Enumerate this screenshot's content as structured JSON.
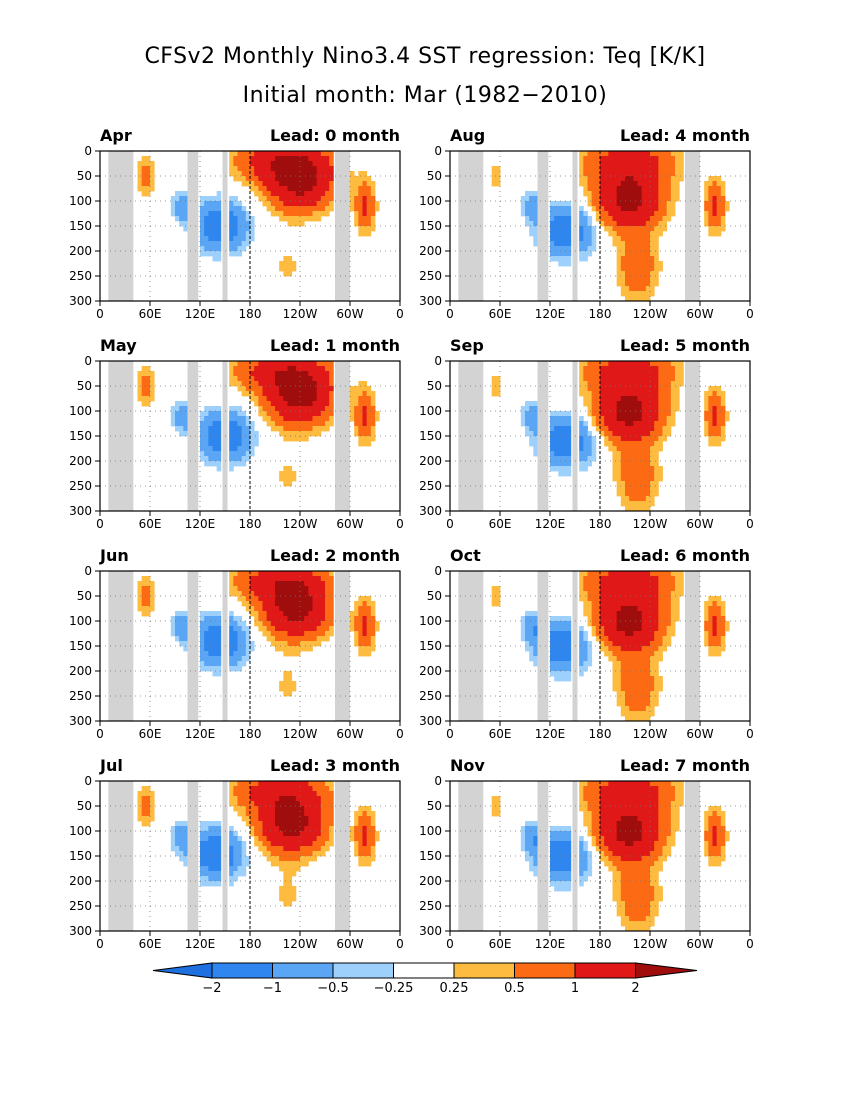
{
  "figure": {
    "title": "CFSv2 Monthly Nino3.4 SST regression: Teq [K/K]",
    "subtitle": "Initial month: Mar (1982−2010)"
  },
  "chart_data": {
    "type": "heatmap",
    "x_ticks": [
      "0",
      "60E",
      "120E",
      "180",
      "120W",
      "60W",
      "0"
    ],
    "x_range_deg_east": [
      0,
      360
    ],
    "y_ticks": [
      "0",
      "50",
      "100",
      "150",
      "200",
      "250",
      "300"
    ],
    "y_range": [
      300,
      0
    ],
    "grid": true,
    "land_mask_color": "#d3d3d3",
    "dateline_marker_deg_east": 180,
    "panels": [
      {
        "month": "Apr",
        "lead_label": "Lead: 0 month",
        "lead": 0,
        "warm_core": 240,
        "warm_depth": 60,
        "cold_core": 145,
        "cold_depth": 150
      },
      {
        "month": "Aug",
        "lead_label": "Lead: 4 month",
        "lead": 4,
        "warm_core": 215,
        "warm_depth": 95,
        "cold_core": 140,
        "cold_depth": 160
      },
      {
        "month": "May",
        "lead_label": "Lead: 1 month",
        "lead": 1,
        "warm_core": 240,
        "warm_depth": 70,
        "cold_core": 150,
        "cold_depth": 150
      },
      {
        "month": "Sep",
        "lead_label": "Lead: 5 month",
        "lead": 5,
        "warm_core": 215,
        "warm_depth": 100,
        "cold_core": 140,
        "cold_depth": 160
      },
      {
        "month": "Jun",
        "lead_label": "Lead: 2 month",
        "lead": 2,
        "warm_core": 235,
        "warm_depth": 75,
        "cold_core": 145,
        "cold_depth": 140
      },
      {
        "month": "Oct",
        "lead_label": "Lead: 6 month",
        "lead": 6,
        "warm_core": 215,
        "warm_depth": 100,
        "cold_core": 135,
        "cold_depth": 150
      },
      {
        "month": "Jul",
        "lead_label": "Lead: 3 month",
        "lead": 3,
        "warm_core": 230,
        "warm_depth": 85,
        "cold_core": 140,
        "cold_depth": 145
      },
      {
        "month": "Nov",
        "lead_label": "Lead: 7 month",
        "lead": 7,
        "warm_core": 215,
        "warm_depth": 100,
        "cold_core": 135,
        "cold_depth": 150
      }
    ],
    "colorbar": {
      "levels": [
        "−2",
        "−1",
        "−0.5",
        "−0.25",
        "0.25",
        "0.5",
        "1",
        "2"
      ],
      "colors": [
        "#1e6fe0",
        "#2e86ee",
        "#5aa6f5",
        "#9dd0fb",
        "#ffffff",
        "#fdbb3f",
        "#fc6a14",
        "#e01818",
        "#a00d0d"
      ]
    },
    "class_colors": {
      "-4": "#1e6fe0",
      "-3": "#2e86ee",
      "-2": "#5aa6f5",
      "-1": "#9dd0fb",
      "1": "#fdbb3f",
      "2": "#fc6a14",
      "3": "#e01818",
      "4": "#a00d0d"
    }
  }
}
